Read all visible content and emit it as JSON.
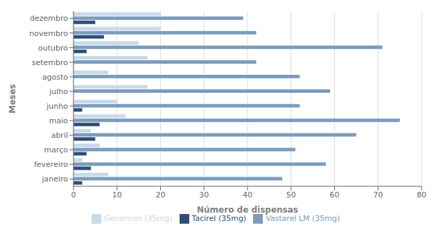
{
  "chart_data": {
    "type": "bar",
    "orientation": "horizontal",
    "xlabel": "Número de dispensas",
    "ylabel": "Meses",
    "categories": [
      "janeiro",
      "fevereiro",
      "março",
      "abril",
      "maio",
      "junho",
      "julho",
      "agosto",
      "setembro",
      "outubro",
      "novembro",
      "dezembro"
    ],
    "series": [
      {
        "name": "Genéricos (35mg)",
        "color": "#c8d9ea",
        "values": [
          8,
          2,
          6,
          4,
          12,
          10,
          17,
          8,
          17,
          15,
          20,
          20
        ]
      },
      {
        "name": "Vastarel LM (35mg)",
        "color": "#7b9cbd",
        "values": [
          48,
          58,
          51,
          65,
          75,
          52,
          59,
          52,
          42,
          71,
          42,
          39
        ]
      },
      {
        "name": "Tacirel (35mg)",
        "color": "#2e4d7a",
        "values": [
          2,
          4,
          3,
          5,
          6,
          2,
          0,
          0,
          0,
          3,
          7,
          5
        ]
      }
    ],
    "xlim": [
      0,
      80
    ],
    "xticks": [
      0,
      10,
      20,
      30,
      40,
      50,
      60,
      70,
      80
    ],
    "grid": true,
    "legend": "bottom"
  }
}
